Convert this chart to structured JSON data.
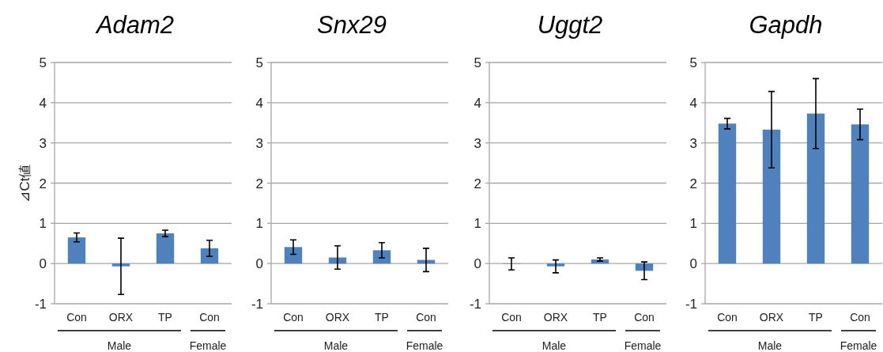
{
  "chart_data": [
    {
      "type": "bar",
      "title": "Adam2",
      "ylabel": "⊿Ct値",
      "categories": [
        "Con",
        "ORX",
        "TP",
        "Con"
      ],
      "values": [
        0.65,
        -0.07,
        0.75,
        0.38
      ],
      "errors": [
        0.11,
        0.7,
        0.08,
        0.2
      ],
      "color": "#4f81bd",
      "ylim": [
        -1,
        5
      ],
      "yticks": [
        -1,
        0,
        1,
        2,
        3,
        4,
        5
      ],
      "grid": "y",
      "annotations": [
        "Male",
        "Female"
      ]
    },
    {
      "type": "bar",
      "title": "Snx29",
      "categories": [
        "Con",
        "ORX",
        "TP",
        "Con"
      ],
      "values": [
        0.41,
        0.15,
        0.33,
        0.09
      ],
      "errors": [
        0.18,
        0.29,
        0.19,
        0.29
      ],
      "color": "#4f81bd",
      "ylim": [
        -1,
        5
      ],
      "yticks": [
        -1,
        0,
        1,
        2,
        3,
        4,
        5
      ],
      "grid": "y",
      "annotations": [
        "Male",
        "Female"
      ]
    },
    {
      "type": "bar",
      "title": "Uggt2",
      "categories": [
        "Con",
        "ORX",
        "TP",
        "Con"
      ],
      "values": [
        -0.01,
        -0.07,
        0.1,
        -0.18
      ],
      "errors": [
        0.15,
        0.16,
        0.04,
        0.22
      ],
      "color": "#4f81bd",
      "ylim": [
        -1,
        5
      ],
      "yticks": [
        -1,
        0,
        1,
        2,
        3,
        4,
        5
      ],
      "grid": "y",
      "annotations": [
        "Male",
        "Female"
      ]
    },
    {
      "type": "bar",
      "title": "Gapdh",
      "categories": [
        "Con",
        "ORX",
        "TP",
        "Con"
      ],
      "values": [
        3.48,
        3.33,
        3.73,
        3.46
      ],
      "errors": [
        0.13,
        0.95,
        0.87,
        0.38
      ],
      "color": "#4f81bd",
      "ylim": [
        -1,
        5
      ],
      "yticks": [
        -1,
        0,
        1,
        2,
        3,
        4,
        5
      ],
      "grid": "y",
      "annotations": [
        "Male",
        "Female"
      ]
    }
  ]
}
